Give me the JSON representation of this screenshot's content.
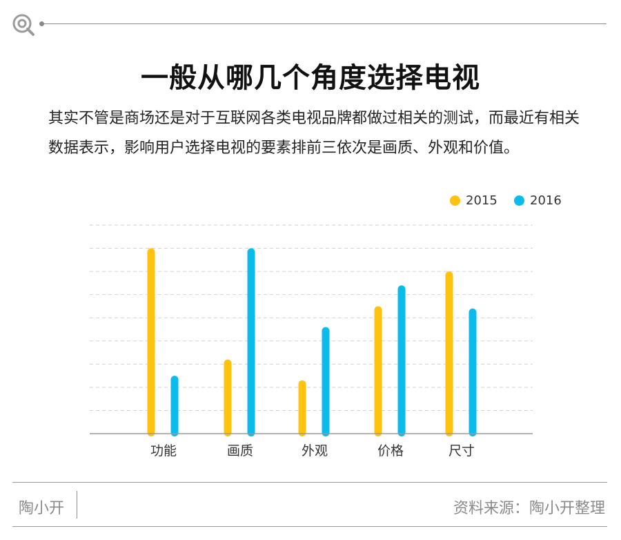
{
  "header": {
    "title": "一般从哪几个角度选择电视",
    "description": "其实不管是商场还是对于互联网各类电视品牌都做过相关的测试，而最近有相关数据表示，影响用户选择电视的要素排前三依次是画质、外观和价值。"
  },
  "colors": {
    "series_2015": "#FFC20E",
    "series_2016": "#0BBCEB",
    "grid": "#d2d2d2",
    "axis": "#999999"
  },
  "icons": {
    "logo": "magnifier-q-icon"
  },
  "chart_data": {
    "type": "bar",
    "title": "",
    "xlabel": "",
    "ylabel": "",
    "categories": [
      "功能",
      "画质",
      "外观",
      "价格",
      "尺寸"
    ],
    "series": [
      {
        "name": "2015",
        "values": [
          8.0,
          3.2,
          2.3,
          5.5,
          7.0
        ]
      },
      {
        "name": "2016",
        "values": [
          2.5,
          8.0,
          4.6,
          6.4,
          5.4
        ]
      }
    ],
    "ylim": [
      0,
      9
    ],
    "grid": true,
    "legend": "top-right"
  },
  "footer": {
    "brand": "陶小开",
    "source": "资料来源：陶小开整理"
  }
}
